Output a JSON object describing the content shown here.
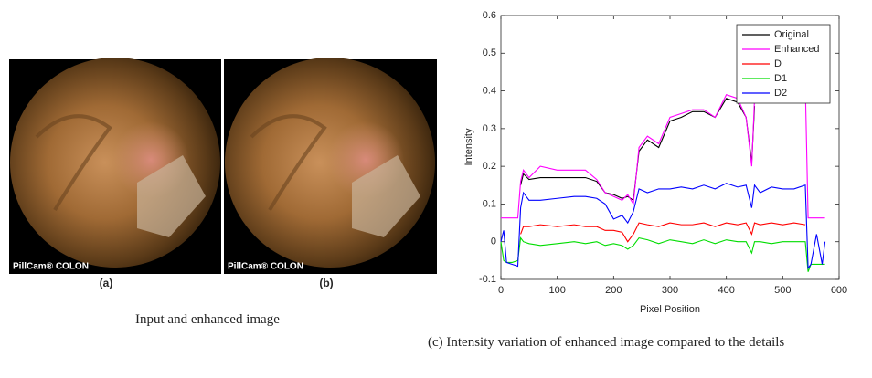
{
  "images": [
    {
      "label": "(a)",
      "watermark": "PillCam® COLON"
    },
    {
      "label": "(b)",
      "watermark": "PillCam® COLON"
    }
  ],
  "images_caption": "Input and enhanced image",
  "chart_caption": "(c) Intensity variation of enhanced image compared to the details",
  "chart_data": {
    "type": "line",
    "x_label": "Pixel Position",
    "y_label": "Intensity",
    "x": [
      0,
      5,
      10,
      20,
      30,
      35,
      40,
      50,
      70,
      100,
      130,
      150,
      170,
      185,
      200,
      215,
      225,
      235,
      245,
      260,
      280,
      300,
      320,
      340,
      360,
      380,
      400,
      420,
      435,
      445,
      450,
      460,
      480,
      500,
      520,
      540,
      545,
      550,
      560,
      570,
      575
    ],
    "series": [
      {
        "name": "Original",
        "color": "#000000",
        "values": [
          null,
          null,
          null,
          null,
          null,
          0.15,
          0.18,
          0.165,
          0.17,
          0.17,
          0.17,
          0.17,
          0.16,
          0.13,
          0.125,
          0.115,
          0.12,
          0.11,
          0.24,
          0.27,
          0.25,
          0.32,
          0.33,
          0.345,
          0.345,
          0.33,
          0.38,
          0.37,
          0.33,
          0.21,
          0.36,
          null,
          null,
          null,
          null,
          0.4,
          null,
          null,
          null,
          null,
          null
        ]
      },
      {
        "name": "Enhanced",
        "color": "#ff00ff",
        "values": [
          0.063,
          0.063,
          0.063,
          0.063,
          0.063,
          0.16,
          0.19,
          0.17,
          0.2,
          0.19,
          0.19,
          0.19,
          0.165,
          0.13,
          0.12,
          0.11,
          0.125,
          0.1,
          0.25,
          0.28,
          0.26,
          0.33,
          0.34,
          0.35,
          0.35,
          0.33,
          0.39,
          0.38,
          0.33,
          0.2,
          0.38,
          null,
          null,
          null,
          null,
          0.42,
          0.063,
          0.063,
          0.063,
          0.063,
          0.063
        ]
      },
      {
        "name": "D",
        "color": "#ff0000",
        "values": [
          null,
          null,
          null,
          null,
          null,
          0.02,
          0.04,
          0.04,
          0.045,
          0.04,
          0.045,
          0.04,
          0.04,
          0.03,
          0.03,
          0.025,
          0.0,
          0.02,
          0.05,
          0.045,
          0.04,
          0.05,
          0.045,
          0.045,
          0.05,
          0.04,
          0.05,
          0.045,
          0.05,
          0.02,
          0.05,
          0.045,
          0.05,
          0.045,
          0.05,
          0.045,
          null,
          null,
          null,
          null,
          null
        ]
      },
      {
        "name": "D1",
        "color": "#00dd00",
        "values": [
          0,
          -0.05,
          -0.055,
          -0.055,
          -0.05,
          0.01,
          0,
          -0.005,
          -0.01,
          -0.005,
          0,
          -0.005,
          0,
          -0.01,
          -0.005,
          -0.01,
          -0.02,
          -0.01,
          0.01,
          0.005,
          -0.005,
          0.005,
          0,
          -0.005,
          0.005,
          -0.005,
          0.005,
          0,
          0,
          -0.03,
          0,
          0,
          -0.005,
          0,
          0,
          0,
          -0.08,
          -0.06,
          -0.06,
          -0.06,
          -0.06
        ]
      },
      {
        "name": "D2",
        "color": "#0000ff",
        "values": [
          0,
          0.03,
          -0.055,
          -0.06,
          -0.065,
          0.09,
          0.13,
          0.11,
          0.11,
          0.115,
          0.12,
          0.12,
          0.115,
          0.1,
          0.06,
          0.07,
          0.05,
          0.08,
          0.14,
          0.13,
          0.14,
          0.14,
          0.145,
          0.14,
          0.15,
          0.14,
          0.155,
          0.145,
          0.15,
          0.09,
          0.15,
          0.13,
          0.145,
          0.14,
          0.14,
          0.15,
          -0.07,
          -0.06,
          0.02,
          -0.06,
          0
        ]
      }
    ],
    "xlim": [
      0,
      600
    ],
    "xticks": [
      0,
      100,
      200,
      300,
      400,
      500,
      600
    ],
    "ylim": [
      -0.1,
      0.6
    ],
    "yticks": [
      -0.1,
      0,
      0.1,
      0.2,
      0.3,
      0.4,
      0.5,
      0.6
    ],
    "legend": "upper right"
  }
}
